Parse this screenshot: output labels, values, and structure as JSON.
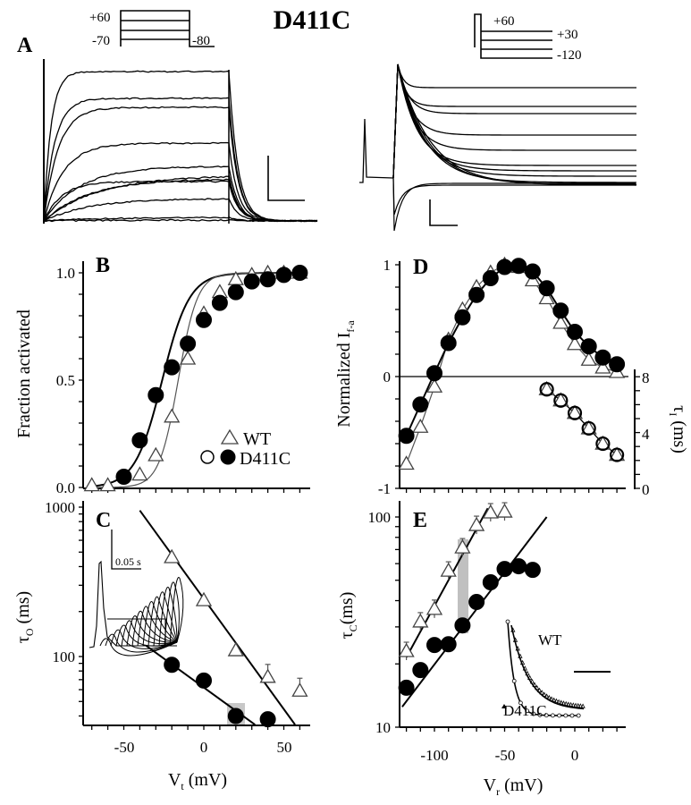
{
  "figure_title": "D411C",
  "panel_a": {
    "label": "A",
    "left_protocol": {
      "top_label": "+60",
      "bottom_label": "-70",
      "tail_label": "-80"
    },
    "right_protocol": {
      "top_label": "+60",
      "mid_label": "+30",
      "bottom_label": "-120"
    }
  },
  "legend": {
    "wt_label": "WT",
    "mut_label": "D411C"
  },
  "inset_c": {
    "scale_label": "0.05 s"
  },
  "inset_e": {
    "wt_label": "WT",
    "mut_label": "D411C"
  },
  "chart_data": [
    {
      "panel": "B",
      "type": "scatter",
      "title": "B",
      "xlabel": "",
      "ylabel": "Fraction activated",
      "xlim": [
        -75,
        65
      ],
      "ylim": [
        0,
        1.0
      ],
      "yticks": [
        "0.0",
        "0.5",
        "1.0"
      ],
      "series": [
        {
          "name": "WT",
          "marker": "open-triangle",
          "x": [
            -70,
            -60,
            -40,
            -30,
            -20,
            -10,
            0,
            10,
            20,
            30,
            40,
            50,
            60
          ],
          "y": [
            0.01,
            0.01,
            0.06,
            0.15,
            0.33,
            0.6,
            0.81,
            0.91,
            0.97,
            0.99,
            1.0,
            1.0,
            1.0
          ]
        },
        {
          "name": "D411C",
          "marker": "filled-circle",
          "x": [
            -50,
            -40,
            -30,
            -20,
            -10,
            0,
            10,
            20,
            30,
            40,
            50,
            60
          ],
          "y": [
            0.05,
            0.22,
            0.43,
            0.56,
            0.67,
            0.78,
            0.86,
            0.91,
            0.96,
            0.97,
            0.99,
            1.0
          ]
        }
      ]
    },
    {
      "panel": "C",
      "type": "scatter",
      "title": "C",
      "xlabel": "Vt (mV)",
      "xlabel_main": "V",
      "xlabel_sub": "t",
      "xlabel_unit": " (mV)",
      "ylabel": "τO (ms)",
      "ylabel_main": "τ",
      "ylabel_sub": "O",
      "ylabel_unit": " (ms)",
      "yscale": "log",
      "xlim": [
        -75,
        65
      ],
      "ylim": [
        35,
        1000
      ],
      "xticks": [
        "-50",
        "0",
        "50"
      ],
      "yticks": [
        "100",
        "1000"
      ],
      "series": [
        {
          "name": "WT",
          "marker": "open-triangle",
          "x": [
            -20,
            0,
            20,
            40,
            60
          ],
          "y": [
            462,
            238,
            110,
            73,
            59
          ]
        },
        {
          "name": "D411C",
          "marker": "filled-circle",
          "x": [
            -20,
            0,
            20,
            40
          ],
          "y": [
            88,
            69,
            40,
            38
          ]
        }
      ]
    },
    {
      "panel": "D",
      "type": "scatter",
      "title": "D",
      "xlabel": "",
      "ylabel": "Normalized If-a",
      "ylabel_main": "Normalized I",
      "ylabel_sub": "f-a",
      "ylabel_right": "τI (ms)",
      "ylabel_right_main": "τ",
      "ylabel_right_sub": "I",
      "ylabel_right_unit": " (ms)",
      "xlim": [
        -125,
        35
      ],
      "ylim": [
        -1,
        1
      ],
      "ylim_right": [
        0,
        8
      ],
      "yticks": [
        "-1",
        "0",
        "1"
      ],
      "yticks_right": [
        "0",
        "4",
        "8"
      ],
      "series": [
        {
          "name": "WT",
          "marker": "open-triangle",
          "x": [
            -120,
            -110,
            -100,
            -90,
            -80,
            -70,
            -60,
            -50,
            -40,
            -30,
            -20,
            -10,
            0,
            10,
            20,
            30
          ],
          "y": [
            -0.78,
            -0.45,
            -0.09,
            0.33,
            0.6,
            0.8,
            0.93,
            1.0,
            0.98,
            0.86,
            0.7,
            0.48,
            0.29,
            0.15,
            0.08,
            0.04
          ]
        },
        {
          "name": "D411C",
          "marker": "filled-circle",
          "x": [
            -120,
            -110,
            -100,
            -90,
            -80,
            -70,
            -60,
            -50,
            -40,
            -30,
            -20,
            -10,
            0,
            10,
            20,
            30
          ],
          "y": [
            -0.53,
            -0.25,
            0.03,
            0.3,
            0.53,
            0.73,
            0.88,
            0.98,
            0.99,
            0.94,
            0.79,
            0.59,
            0.4,
            0.27,
            0.17,
            0.11
          ]
        },
        {
          "name": "D411C τI",
          "axis": "right",
          "marker": "open-circle",
          "x": [
            -20,
            -10,
            0,
            10,
            20,
            30
          ],
          "y": [
            7.1,
            6.3,
            5.4,
            4.3,
            3.2,
            2.4
          ]
        }
      ]
    },
    {
      "panel": "E",
      "type": "scatter",
      "title": "E",
      "xlabel": "Vr (mV)",
      "xlabel_main": "V",
      "xlabel_sub": "r",
      "xlabel_unit": " (mV)",
      "ylabel": "τC(ms)",
      "ylabel_main": "τ",
      "ylabel_sub": "C",
      "ylabel_unit": "(ms)",
      "yscale": "log",
      "xlim": [
        -125,
        35
      ],
      "ylim": [
        10,
        110
      ],
      "xticks": [
        "-100",
        "-50",
        "0"
      ],
      "yticks": [
        "10",
        "100"
      ],
      "series": [
        {
          "name": "WT",
          "marker": "open-triangle",
          "x": [
            -120,
            -110,
            -100,
            -90,
            -80,
            -70,
            -60,
            -50
          ],
          "y": [
            23,
            31.8,
            36.5,
            55.5,
            71.6,
            91.5,
            105,
            106
          ]
        },
        {
          "name": "D411C",
          "marker": "filled-circle",
          "x": [
            -120,
            -110,
            -100,
            -90,
            -80,
            -70,
            -60,
            -50,
            -40,
            -30
          ],
          "y": [
            15.4,
            18.7,
            24.6,
            24.8,
            30.5,
            39.4,
            48.9,
            56.6,
            58.3,
            56
          ]
        }
      ]
    }
  ]
}
